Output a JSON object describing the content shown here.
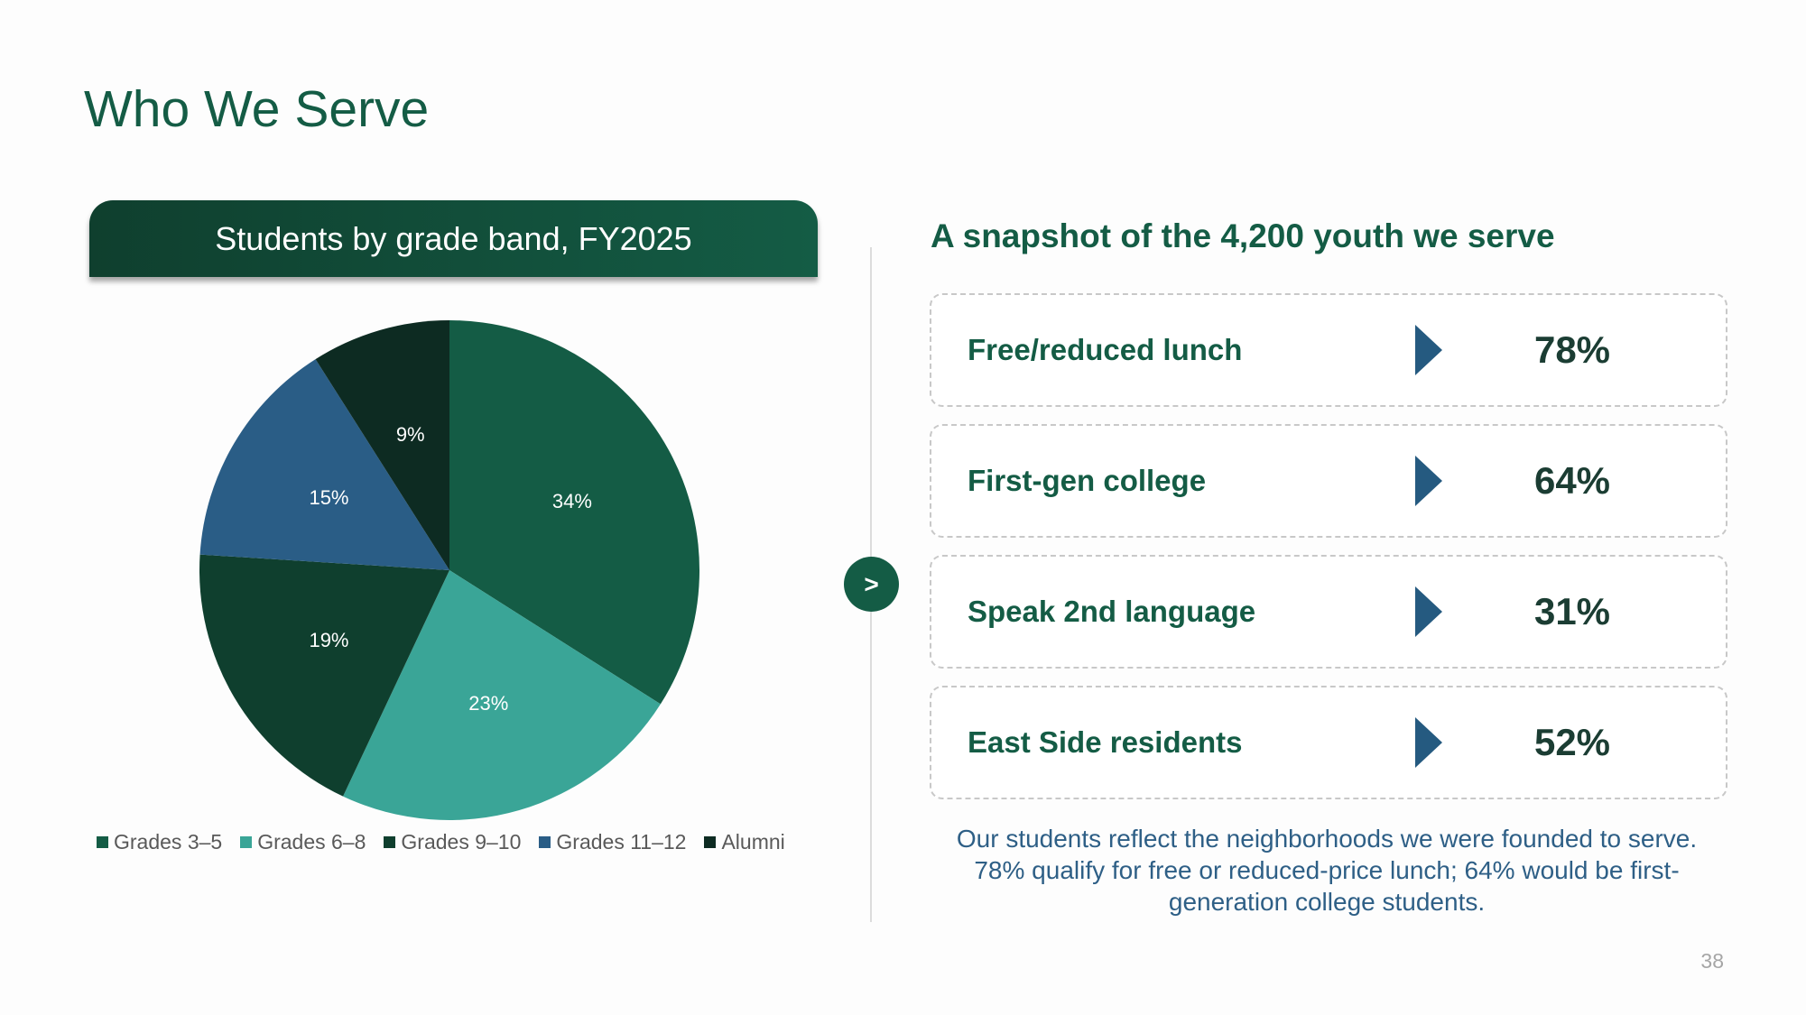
{
  "slide": {
    "title": "Who We Serve",
    "page_number": "38",
    "next_label": ">"
  },
  "chart_header": "Students by grade band, FY2025",
  "chart_data": {
    "type": "pie",
    "title": "Students by grade band, FY2025",
    "categories": [
      "Grades 3–5",
      "Grades 6–8",
      "Grades 9–10",
      "Grades 11–12",
      "Alumni"
    ],
    "values": [
      34,
      23,
      19,
      15,
      9
    ],
    "labels": [
      "34%",
      "23%",
      "19%",
      "15%",
      "9%"
    ],
    "colors": [
      "#145c45",
      "#3aa597",
      "#0f3f2e",
      "#2a5d86",
      "#0d2b22"
    ],
    "legend_position": "bottom"
  },
  "snapshot": {
    "title": "A snapshot of the 4,200 youth we serve",
    "stats": [
      {
        "label": "Free/reduced lunch",
        "value": "78%"
      },
      {
        "label": "First-gen college",
        "value": "64%"
      },
      {
        "label": "Speak 2nd language",
        "value": "31%"
      },
      {
        "label": "East Side residents",
        "value": "52%"
      }
    ],
    "summary": "Our students reflect the neighborhoods we were founded to serve. 78% qualify for free or reduced-price lunch; 64% would be first-generation college students."
  },
  "colors": {
    "accent": "#145c45",
    "arrow": "#255a80",
    "summary_text": "#2e5f86"
  }
}
